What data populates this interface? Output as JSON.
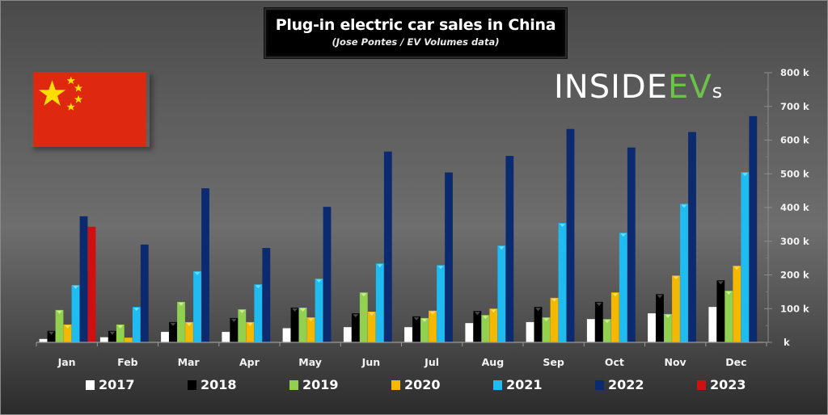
{
  "header": {
    "title": "Plug-in electric car sales in China",
    "subtitle": "(Jose Pontes / EV Volumes data)"
  },
  "logo": {
    "text_white": "INSIDE",
    "text_green": "EV",
    "text_suffix": "s",
    "green": "#6cc24a"
  },
  "flag": {
    "icon": "china-flag-icon",
    "red": "#de2910",
    "yellow": "#ffde00"
  },
  "chart_data": {
    "type": "bar",
    "title": "Plug-in electric car sales in China",
    "subtitle": "(Jose Pontes / EV Volumes data)",
    "xlabel": "",
    "ylabel": "",
    "ylim": [
      0,
      800000
    ],
    "y_axis_side": "right",
    "y_ticks": [
      0,
      100000,
      200000,
      300000,
      400000,
      500000,
      600000,
      700000,
      800000
    ],
    "y_tick_labels": [
      "k",
      "100 k",
      "200 k",
      "300 k",
      "400 k",
      "500 k",
      "600 k",
      "700 k",
      "800 k"
    ],
    "grid": false,
    "legend_position": "bottom",
    "categories": [
      "Jan",
      "Feb",
      "Mar",
      "Apr",
      "May",
      "Jun",
      "Jul",
      "Aug",
      "Sep",
      "Oct",
      "Nov",
      "Dec"
    ],
    "series": [
      {
        "name": "2017",
        "color": "#ffffff",
        "values": [
          10000,
          15000,
          31000,
          31000,
          42000,
          45000,
          45000,
          57000,
          60000,
          69000,
          86000,
          105000
        ]
      },
      {
        "name": "2018",
        "color": "#000000",
        "values": [
          34000,
          34000,
          60000,
          72000,
          103000,
          86000,
          77000,
          93000,
          105000,
          120000,
          143000,
          184000
        ]
      },
      {
        "name": "2019",
        "color": "#92d050",
        "values": [
          96000,
          53000,
          120000,
          98000,
          103000,
          148000,
          72000,
          81000,
          74000,
          69000,
          84000,
          153000
        ]
      },
      {
        "name": "2020",
        "color": "#f5b800",
        "values": [
          53000,
          14000,
          60000,
          60000,
          74000,
          91000,
          94000,
          100000,
          132000,
          148000,
          198000,
          227000
        ]
      },
      {
        "name": "2021",
        "color": "#1ebcf0",
        "values": [
          170000,
          105000,
          211000,
          172000,
          189000,
          234000,
          229000,
          287000,
          354000,
          325000,
          411000,
          505000
        ]
      },
      {
        "name": "2022",
        "color": "#0b2a6f",
        "values": [
          374000,
          290000,
          457000,
          280000,
          402000,
          566000,
          504000,
          553000,
          633000,
          578000,
          624000,
          671000
        ]
      },
      {
        "name": "2023",
        "color": "#d01010",
        "values": [
          343000,
          null,
          null,
          null,
          null,
          null,
          null,
          null,
          null,
          null,
          null,
          null
        ]
      }
    ]
  }
}
